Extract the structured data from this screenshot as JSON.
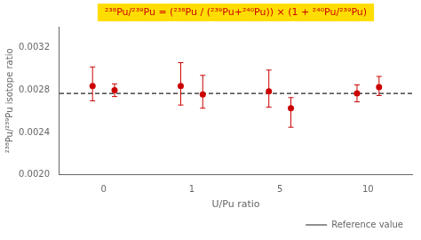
{
  "chart_data": {
    "type": "scatter",
    "categories": [
      "0",
      "1",
      "5",
      "10"
    ],
    "series": [
      {
        "color": "#cc0000",
        "marker": "circle",
        "values": [
          0.00284,
          0.00284,
          0.00279,
          0.00277
        ],
        "error_plus": [
          0.00018,
          0.00022,
          0.0002,
          8e-05
        ],
        "error_minus": [
          0.00014,
          0.00018,
          0.00015,
          8e-05
        ]
      },
      {
        "color": "#cc0000",
        "marker": "circle",
        "values": [
          0.0028,
          0.00276,
          0.00263,
          0.00283
        ],
        "error_plus": [
          6e-05,
          0.00018,
          0.0001,
          0.0001
        ],
        "error_minus": [
          6e-05,
          0.00013,
          0.00018,
          8e-05
        ]
      }
    ],
    "reference": {
      "value": 0.00277,
      "label": "Reference value",
      "color": "#222222",
      "line_style": "dashed"
    },
    "x_label": "U/Pu ratio",
    "y_label": "²³⁸Pu/²³⁹Pu isotope ratio",
    "ylim": [
      0.002,
      0.0034
    ],
    "yticks": [
      {
        "value": 0.002,
        "label": "0.0020"
      },
      {
        "value": 0.0024,
        "label": "0.0024"
      },
      {
        "value": 0.0028,
        "label": "0.0028"
      },
      {
        "value": 0.0032,
        "label": "0.0032"
      }
    ],
    "grid": false,
    "legend": "lower right",
    "annotations": [
      {
        "text": "²³⁸Pu/²³⁹Pu = (²³⁸Pu / (²³⁹Pu+²⁴⁰Pu)) × (1 + ²⁴⁰Pu/²³⁹Pu)",
        "color": "#cc0000",
        "background_color": "#ffdd00"
      }
    ]
  }
}
